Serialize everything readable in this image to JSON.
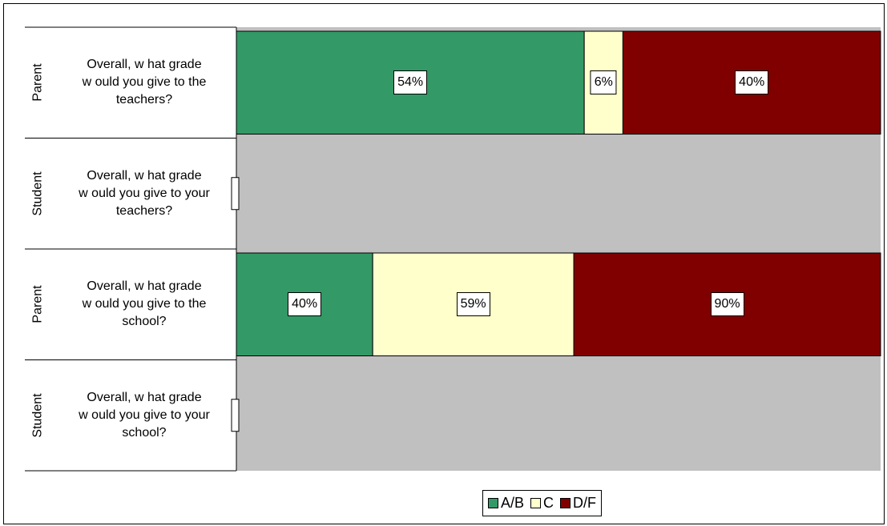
{
  "chart_data": {
    "type": "bar",
    "orientation": "horizontal",
    "stacked": true,
    "categories": [
      {
        "group": "Parent",
        "question": "Overall, w hat grade\nw ould you give to the\nteachers?"
      },
      {
        "group": "Student",
        "question": "Overall, w hat grade\nw ould you give to your\nteachers?"
      },
      {
        "group": "Parent",
        "question": "Overall, w hat grade\nw ould you give to the\nschool?"
      },
      {
        "group": "Student",
        "question": "Overall, w hat grade\nw ould you give to your\nschool?"
      }
    ],
    "series": [
      {
        "name": "A/B",
        "color": "#339966",
        "values": [
          54,
          0,
          40,
          0
        ],
        "labels": [
          "54%",
          "",
          "40%",
          ""
        ]
      },
      {
        "name": "C",
        "color": "#FFFFCC",
        "values": [
          6,
          0,
          59,
          0
        ],
        "labels": [
          "6%",
          "",
          "59%",
          ""
        ]
      },
      {
        "name": "D/F",
        "color": "#800000",
        "values": [
          40,
          0,
          90,
          0
        ],
        "labels": [
          "40%",
          "",
          "90%",
          ""
        ]
      }
    ],
    "plot_background": "#C0C0C0",
    "legend_position": "bottom"
  }
}
